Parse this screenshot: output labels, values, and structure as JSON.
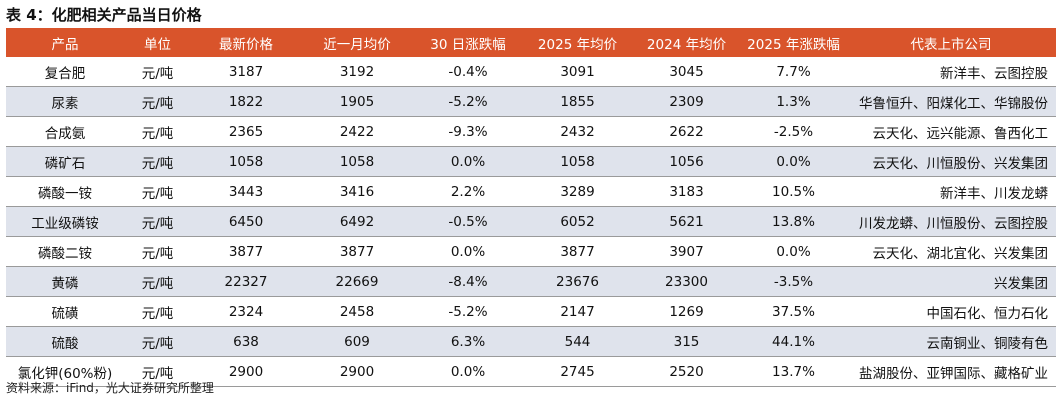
{
  "title": "表 4：化肥相关产品当日价格",
  "headers": [
    "产品",
    "单位",
    "最新价格",
    "近一月均价",
    "30 日涨跌幅",
    "2025 年均价",
    "2024 年均价",
    "2025 年涨跌幅",
    "代表上市公司"
  ],
  "rows": [
    {
      "product": "复合肥",
      "unit": "元/吨",
      "latest": "3187",
      "month_avg": "3192",
      "chg_30d": "-0.4%",
      "avg_2025": "3091",
      "avg_2024": "3045",
      "chg_2025": "7.7%",
      "companies": "新洋丰、云图控股"
    },
    {
      "product": "尿素",
      "unit": "元/吨",
      "latest": "1822",
      "month_avg": "1905",
      "chg_30d": "-5.2%",
      "avg_2025": "1855",
      "avg_2024": "2309",
      "chg_2025": "1.3%",
      "companies": "华鲁恒升、阳煤化工、华锦股份"
    },
    {
      "product": "合成氨",
      "unit": "元/吨",
      "latest": "2365",
      "month_avg": "2422",
      "chg_30d": "-9.3%",
      "avg_2025": "2432",
      "avg_2024": "2622",
      "chg_2025": "-2.5%",
      "companies": "云天化、远兴能源、鲁西化工"
    },
    {
      "product": "磷矿石",
      "unit": "元/吨",
      "latest": "1058",
      "month_avg": "1058",
      "chg_30d": "0.0%",
      "avg_2025": "1058",
      "avg_2024": "1056",
      "chg_2025": "0.0%",
      "companies": "云天化、川恒股份、兴发集团"
    },
    {
      "product": "磷酸一铵",
      "unit": "元/吨",
      "latest": "3443",
      "month_avg": "3416",
      "chg_30d": "2.2%",
      "avg_2025": "3289",
      "avg_2024": "3183",
      "chg_2025": "10.5%",
      "companies": "新洋丰、川发龙蟒"
    },
    {
      "product": "工业级磷铵",
      "unit": "元/吨",
      "latest": "6450",
      "month_avg": "6492",
      "chg_30d": "-0.5%",
      "avg_2025": "6052",
      "avg_2024": "5621",
      "chg_2025": "13.8%",
      "companies": "川发龙蟒、川恒股份、云图控股"
    },
    {
      "product": "磷酸二铵",
      "unit": "元/吨",
      "latest": "3877",
      "month_avg": "3877",
      "chg_30d": "0.0%",
      "avg_2025": "3877",
      "avg_2024": "3907",
      "chg_2025": "0.0%",
      "companies": "云天化、湖北宜化、兴发集团"
    },
    {
      "product": "黄磷",
      "unit": "元/吨",
      "latest": "22327",
      "month_avg": "22669",
      "chg_30d": "-8.4%",
      "avg_2025": "23676",
      "avg_2024": "23300",
      "chg_2025": "-3.5%",
      "companies": "兴发集团"
    },
    {
      "product": "硫磺",
      "unit": "元/吨",
      "latest": "2324",
      "month_avg": "2458",
      "chg_30d": "-5.2%",
      "avg_2025": "2147",
      "avg_2024": "1269",
      "chg_2025": "37.5%",
      "companies": "中国石化、恒力石化"
    },
    {
      "product": "硫酸",
      "unit": "元/吨",
      "latest": "638",
      "month_avg": "609",
      "chg_30d": "6.3%",
      "avg_2025": "544",
      "avg_2024": "315",
      "chg_2025": "44.1%",
      "companies": "云南铜业、铜陵有色"
    },
    {
      "product": "氯化钾(60%粉)",
      "unit": "元/吨",
      "latest": "2900",
      "month_avg": "2900",
      "chg_30d": "0.0%",
      "avg_2025": "2745",
      "avg_2024": "2520",
      "chg_2025": "13.7%",
      "companies": "盐湖股份、亚钾国际、藏格矿业"
    }
  ],
  "source": "资料来源：iFind，光大证券研究所整理",
  "colors": {
    "header_bg": "#d9542b",
    "header_text": "#ffffff",
    "shaded_row": "#dfe3ec"
  }
}
